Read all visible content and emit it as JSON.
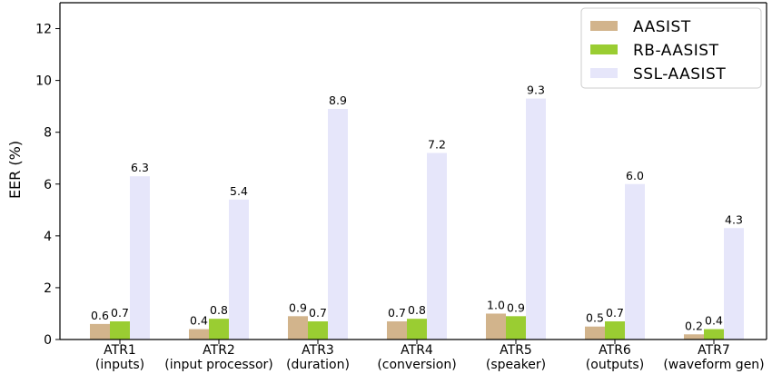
{
  "chart_data": {
    "type": "bar",
    "categories": [
      [
        "ATR1",
        "(inputs)"
      ],
      [
        "ATR2",
        "(input processor)"
      ],
      [
        "ATR3",
        "(duration)"
      ],
      [
        "ATR4",
        "(conversion)"
      ],
      [
        "ATR5",
        "(speaker)"
      ],
      [
        "ATR6",
        "(outputs)"
      ],
      [
        "ATR7",
        "(waveform gen)"
      ]
    ],
    "series": [
      {
        "name": "AASIST",
        "color": "#d2b48c",
        "values": [
          0.6,
          0.4,
          0.9,
          0.7,
          1.0,
          0.5,
          0.2
        ],
        "labels": [
          "0.6",
          "0.4",
          "0.9",
          "0.7",
          "1.0",
          "0.5",
          "0.2"
        ]
      },
      {
        "name": "RB-AASIST",
        "color": "#9acd32",
        "values": [
          0.7,
          0.8,
          0.7,
          0.8,
          0.9,
          0.7,
          0.4
        ],
        "labels": [
          "0.7",
          "0.8",
          "0.7",
          "0.8",
          "0.9",
          "0.7",
          "0.4"
        ]
      },
      {
        "name": "SSL-AASIST",
        "color": "#e6e6fa",
        "values": [
          6.3,
          5.4,
          8.9,
          7.2,
          9.3,
          6.0,
          4.3
        ],
        "labels": [
          "6.3",
          "5.4",
          "8.9",
          "7.2",
          "9.3",
          "6.0",
          "4.3"
        ]
      }
    ],
    "ylabel": "EER (%)",
    "yticks": [
      "0",
      "2",
      "4",
      "6",
      "8",
      "10",
      "12"
    ],
    "ylim": [
      0,
      13
    ],
    "legend_position": "top-right",
    "grid": false
  }
}
